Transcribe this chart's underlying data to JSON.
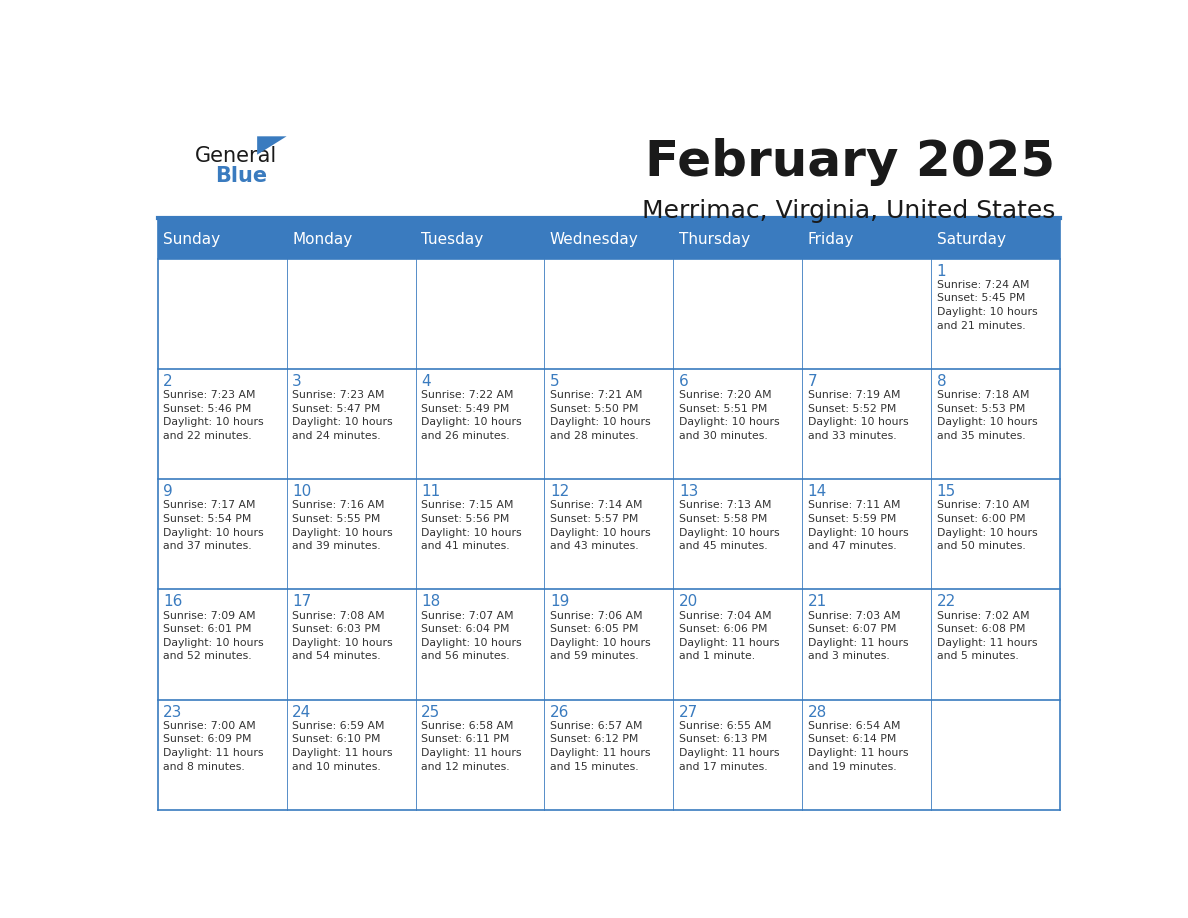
{
  "title": "February 2025",
  "subtitle": "Merrimac, Virginia, United States",
  "header_bg": "#3a7bbf",
  "header_text_color": "#ffffff",
  "cell_bg": "#ffffff",
  "border_color": "#3a7bbf",
  "title_color": "#1a1a1a",
  "subtitle_color": "#1a1a1a",
  "day_number_color": "#3a7bbf",
  "cell_text_color": "#333333",
  "days_of_week": [
    "Sunday",
    "Monday",
    "Tuesday",
    "Wednesday",
    "Thursday",
    "Friday",
    "Saturday"
  ],
  "calendar_data": [
    [
      "",
      "",
      "",
      "",
      "",
      "",
      "1\nSunrise: 7:24 AM\nSunset: 5:45 PM\nDaylight: 10 hours\nand 21 minutes."
    ],
    [
      "2\nSunrise: 7:23 AM\nSunset: 5:46 PM\nDaylight: 10 hours\nand 22 minutes.",
      "3\nSunrise: 7:23 AM\nSunset: 5:47 PM\nDaylight: 10 hours\nand 24 minutes.",
      "4\nSunrise: 7:22 AM\nSunset: 5:49 PM\nDaylight: 10 hours\nand 26 minutes.",
      "5\nSunrise: 7:21 AM\nSunset: 5:50 PM\nDaylight: 10 hours\nand 28 minutes.",
      "6\nSunrise: 7:20 AM\nSunset: 5:51 PM\nDaylight: 10 hours\nand 30 minutes.",
      "7\nSunrise: 7:19 AM\nSunset: 5:52 PM\nDaylight: 10 hours\nand 33 minutes.",
      "8\nSunrise: 7:18 AM\nSunset: 5:53 PM\nDaylight: 10 hours\nand 35 minutes."
    ],
    [
      "9\nSunrise: 7:17 AM\nSunset: 5:54 PM\nDaylight: 10 hours\nand 37 minutes.",
      "10\nSunrise: 7:16 AM\nSunset: 5:55 PM\nDaylight: 10 hours\nand 39 minutes.",
      "11\nSunrise: 7:15 AM\nSunset: 5:56 PM\nDaylight: 10 hours\nand 41 minutes.",
      "12\nSunrise: 7:14 AM\nSunset: 5:57 PM\nDaylight: 10 hours\nand 43 minutes.",
      "13\nSunrise: 7:13 AM\nSunset: 5:58 PM\nDaylight: 10 hours\nand 45 minutes.",
      "14\nSunrise: 7:11 AM\nSunset: 5:59 PM\nDaylight: 10 hours\nand 47 minutes.",
      "15\nSunrise: 7:10 AM\nSunset: 6:00 PM\nDaylight: 10 hours\nand 50 minutes."
    ],
    [
      "16\nSunrise: 7:09 AM\nSunset: 6:01 PM\nDaylight: 10 hours\nand 52 minutes.",
      "17\nSunrise: 7:08 AM\nSunset: 6:03 PM\nDaylight: 10 hours\nand 54 minutes.",
      "18\nSunrise: 7:07 AM\nSunset: 6:04 PM\nDaylight: 10 hours\nand 56 minutes.",
      "19\nSunrise: 7:06 AM\nSunset: 6:05 PM\nDaylight: 10 hours\nand 59 minutes.",
      "20\nSunrise: 7:04 AM\nSunset: 6:06 PM\nDaylight: 11 hours\nand 1 minute.",
      "21\nSunrise: 7:03 AM\nSunset: 6:07 PM\nDaylight: 11 hours\nand 3 minutes.",
      "22\nSunrise: 7:02 AM\nSunset: 6:08 PM\nDaylight: 11 hours\nand 5 minutes."
    ],
    [
      "23\nSunrise: 7:00 AM\nSunset: 6:09 PM\nDaylight: 11 hours\nand 8 minutes.",
      "24\nSunrise: 6:59 AM\nSunset: 6:10 PM\nDaylight: 11 hours\nand 10 minutes.",
      "25\nSunrise: 6:58 AM\nSunset: 6:11 PM\nDaylight: 11 hours\nand 12 minutes.",
      "26\nSunrise: 6:57 AM\nSunset: 6:12 PM\nDaylight: 11 hours\nand 15 minutes.",
      "27\nSunrise: 6:55 AM\nSunset: 6:13 PM\nDaylight: 11 hours\nand 17 minutes.",
      "28\nSunrise: 6:54 AM\nSunset: 6:14 PM\nDaylight: 11 hours\nand 19 minutes.",
      ""
    ]
  ],
  "logo_text1": "General",
  "logo_text2": "Blue",
  "logo_triangle_color": "#3a7bbf",
  "logo_text1_color": "#1a1a1a"
}
